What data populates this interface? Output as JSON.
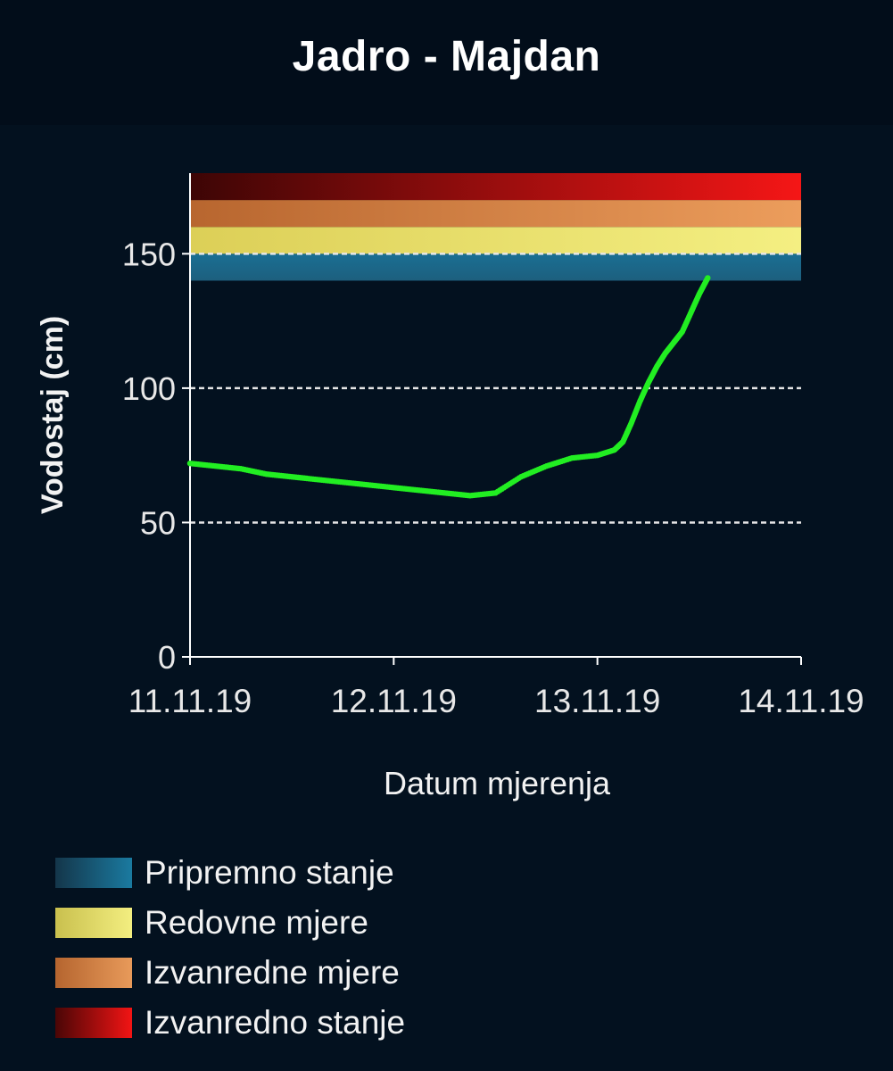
{
  "title": "Jadro - Majdan",
  "chart_data": {
    "type": "scatter",
    "title": "Jadro - Majdan",
    "xlabel": "Datum mjerenja",
    "ylabel": "Vodostaj (cm)",
    "x_ticks": [
      "11.11.19",
      "12.11.19",
      "13.11.19",
      "14.11.19"
    ],
    "xlim": [
      "11.11.19 00:00",
      "14.11.19 00:00"
    ],
    "ylim": [
      0,
      180
    ],
    "y_ticks": [
      0,
      50,
      100,
      150
    ],
    "grid": "horizontal dashed at 50, 100, 150",
    "legend_placement": "bottom-left",
    "thresholds": [
      {
        "name": "Pripremno stanje",
        "from": 140,
        "to": 150,
        "color": "#1a7aa0"
      },
      {
        "name": "Redovne mjere",
        "from": 150,
        "to": 160,
        "color": "#f3ee80"
      },
      {
        "name": "Izvanredne mjere",
        "from": 160,
        "to": 170,
        "color": "#e89a5a"
      },
      {
        "name": "Izvanredno stanje",
        "from": 170,
        "to": 180,
        "color": "#f21414"
      }
    ],
    "series": [
      {
        "color": "#22ee22",
        "x": [
          "11.11.19 00:00",
          "11.11.19 03:00",
          "11.11.19 06:00",
          "11.11.19 09:00",
          "11.11.19 12:00",
          "11.11.19 15:00",
          "11.11.19 18:00",
          "11.11.19 21:00",
          "12.11.19 00:00",
          "12.11.19 03:00",
          "12.11.19 06:00",
          "12.11.19 09:00",
          "12.11.19 12:00",
          "12.11.19 15:00",
          "12.11.19 18:00",
          "12.11.19 21:00",
          "13.11.19 00:00",
          "13.11.19 02:00",
          "13.11.19 03:00",
          "13.11.19 04:00",
          "13.11.19 05:00",
          "13.11.19 06:00",
          "13.11.19 07:00",
          "13.11.19 08:00",
          "13.11.19 09:00",
          "13.11.19 10:00",
          "13.11.19 11:00",
          "13.11.19 12:00",
          "13.11.19 13:00"
        ],
        "y": [
          72,
          71,
          70,
          68,
          67,
          66,
          65,
          64,
          63,
          62,
          61,
          60,
          61,
          67,
          71,
          74,
          75,
          77,
          80,
          87,
          95,
          102,
          108,
          113,
          117,
          121,
          128,
          135,
          141
        ]
      }
    ]
  },
  "legend": [
    {
      "label": "Pripremno stanje",
      "color": "#1a7aa0"
    },
    {
      "label": "Redovne mjere",
      "color": "#f3ee80"
    },
    {
      "label": "Izvanredne mjere",
      "color": "#e89a5a"
    },
    {
      "label": "Izvanredno stanje",
      "color": "#f21414"
    }
  ]
}
